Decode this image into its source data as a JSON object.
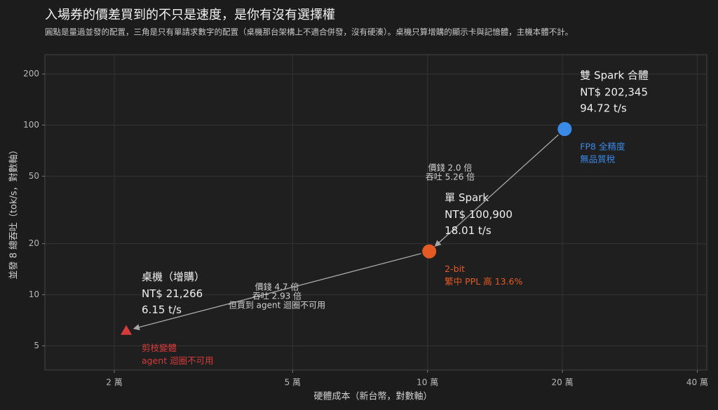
{
  "chart_data": {
    "type": "scatter",
    "title": "入場券的價差買到的不只是速度，是你有沒有選擇權",
    "subtitle": "圓點是量過並發的配置，三角是只有單請求數字的配置（桌機那台架構上不適合併發，沒有硬湊）。桌機只算增購的顯示卡與記憶體，主機本體不計。",
    "x_label": "硬體成本（新台幣，對數軸）",
    "y_label": "並發 8 總吞吐（tok/s，對數軸）",
    "xscale": "log",
    "yscale": "log",
    "grid": true,
    "xlim": [
      14000,
      420000
    ],
    "xticks": [
      {
        "value": 20000,
        "label": "2 萬"
      },
      {
        "value": 50000,
        "label": "5 萬"
      },
      {
        "value": 100000,
        "label": "10 萬"
      },
      {
        "value": 200000,
        "label": "20 萬"
      },
      {
        "value": 400000,
        "label": "40 萬"
      }
    ],
    "ylim": [
      3.6,
      260
    ],
    "yticks": [
      5,
      10,
      20,
      50,
      100,
      200
    ],
    "series": [
      {
        "name": "桌機（增購）",
        "marker": "triangle",
        "color": "#d63b3b",
        "x": [
          21266
        ],
        "x_labels": [
          "NT$ 21,266"
        ],
        "values": [
          6.15
        ],
        "value_labels": [
          "6.15 t/s"
        ],
        "notes": [
          "剪枝變體",
          "agent 迴圈不可用"
        ]
      },
      {
        "name": "單 Spark",
        "marker": "circle",
        "color": "#e35a24",
        "x": [
          100900
        ],
        "x_labels": [
          "NT$ 100,900"
        ],
        "values": [
          18.01
        ],
        "value_labels": [
          "18.01 t/s"
        ],
        "notes": [
          "2-bit",
          "繁中 PPL 高 13.6%"
        ]
      },
      {
        "name": "雙 Spark 合體",
        "marker": "circle",
        "color": "#3a8ae8",
        "x": [
          202345
        ],
        "x_labels": [
          "NT$ 202,345"
        ],
        "values": [
          94.72
        ],
        "value_labels": [
          "94.72 t/s"
        ],
        "notes": [
          "FP8 全精度",
          "無品質稅"
        ]
      }
    ],
    "annotations": [
      {
        "lines": [
          "價錢 4.7 倍",
          "吞吐 2.93 倍",
          "但買到 agent 迴圈不可用"
        ]
      },
      {
        "lines": [
          "價錢 2.0 倍",
          "吞吐 5.26 倍"
        ]
      }
    ]
  }
}
